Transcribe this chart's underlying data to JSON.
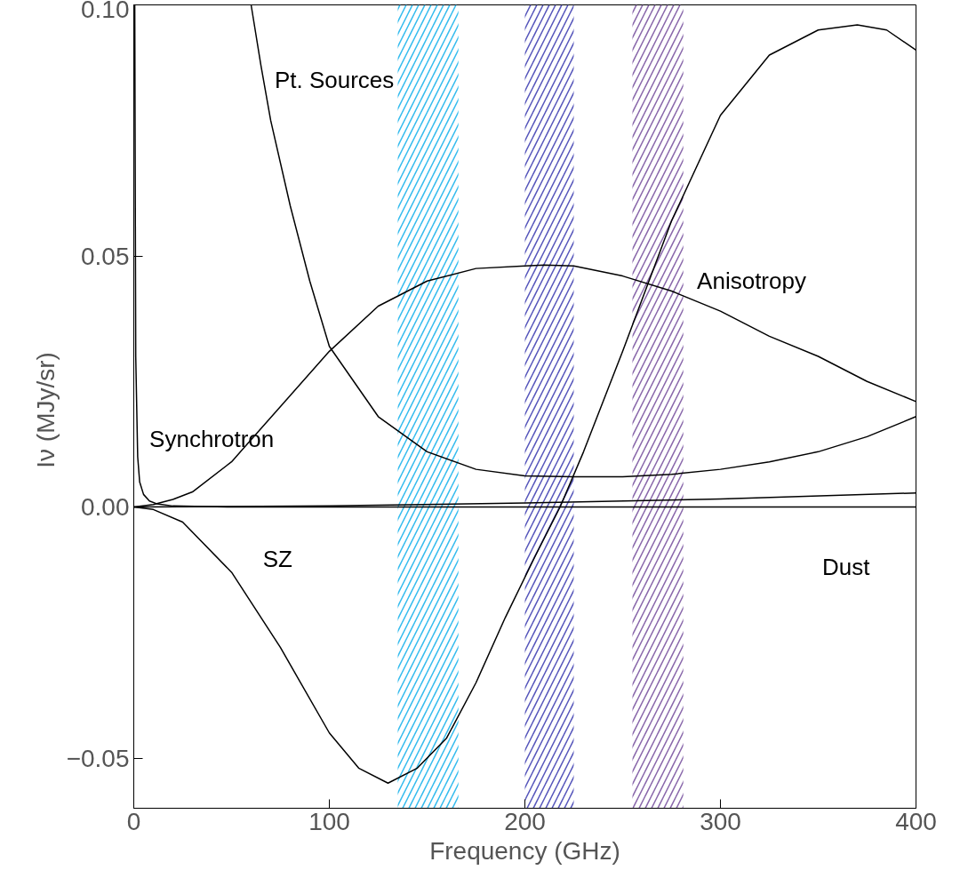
{
  "chart_data": {
    "type": "line",
    "xlabel": "Frequency (GHz)",
    "ylabel": "Iν  (MJy/sr)",
    "xlim": [
      0,
      400
    ],
    "ylim": [
      -0.06,
      0.1
    ],
    "xticks": [
      0,
      100,
      200,
      300,
      400
    ],
    "yticks": [
      {
        "value": -0.05,
        "label": "−0.05"
      },
      {
        "value": 0,
        "label": "0.00"
      },
      {
        "value": 0.05,
        "label": "0.05"
      },
      {
        "value": 0.1,
        "label": "0.10"
      }
    ],
    "grid": false,
    "series": [
      {
        "color": "#000000",
        "x": [
          0,
          10,
          20,
          30,
          50,
          75,
          100,
          125,
          150,
          175,
          200,
          210,
          225,
          250,
          275,
          300,
          325,
          350,
          375,
          400
        ],
        "values": [
          0,
          0.0005,
          0.0015,
          0.003,
          0.009,
          0.02,
          0.031,
          0.04,
          0.045,
          0.0475,
          0.048,
          0.0482,
          0.048,
          0.046,
          0.043,
          0.039,
          0.034,
          0.03,
          0.025,
          0.021
        ]
      },
      {
        "color": "#000000",
        "x": [
          60,
          65,
          70,
          80,
          90,
          100,
          125,
          150,
          175,
          200,
          225,
          250,
          275,
          300,
          325,
          350,
          375,
          400
        ],
        "values": [
          0.1,
          0.088,
          0.077,
          0.06,
          0.045,
          0.032,
          0.018,
          0.011,
          0.0075,
          0.0062,
          0.006,
          0.006,
          0.0065,
          0.0075,
          0.009,
          0.011,
          0.014,
          0.018
        ]
      },
      {
        "color": "#000000",
        "x": [
          0,
          10,
          25,
          50,
          75,
          100,
          115,
          130,
          145,
          160,
          175,
          190,
          205,
          218,
          230,
          250,
          275,
          300,
          325,
          350,
          370,
          385,
          400
        ],
        "values": [
          0,
          -0.0005,
          -0.003,
          -0.013,
          -0.028,
          -0.045,
          -0.052,
          -0.055,
          -0.052,
          -0.046,
          -0.035,
          -0.022,
          -0.01,
          0,
          0.011,
          0.031,
          0.057,
          0.078,
          0.09,
          0.095,
          0.096,
          0.095,
          0.091
        ]
      },
      {
        "color": "#000000",
        "x": [
          0.5,
          1,
          2,
          3,
          5,
          8,
          12,
          20,
          50,
          100,
          400
        ],
        "values": [
          0.1,
          0.03,
          0.01,
          0.005,
          0.0025,
          0.0012,
          0.0006,
          0.0002,
          0,
          0,
          0
        ]
      },
      {
        "color": "#000000",
        "x": [
          0,
          100,
          200,
          300,
          400
        ],
        "values": [
          0,
          0.0002,
          0.0008,
          0.0016,
          0.0028
        ]
      }
    ],
    "bands": [
      {
        "axis": "x",
        "from": 135,
        "to": 166,
        "color": "#33bbee"
      },
      {
        "axis": "x",
        "from": 200,
        "to": 225,
        "color": "#5555bb"
      },
      {
        "axis": "x",
        "from": 255,
        "to": 281,
        "color": "#8866aa"
      }
    ],
    "annotations": [
      "Pt. Sources",
      "Anisotropy",
      "SZ",
      "Synchrotron",
      "Dust"
    ]
  }
}
